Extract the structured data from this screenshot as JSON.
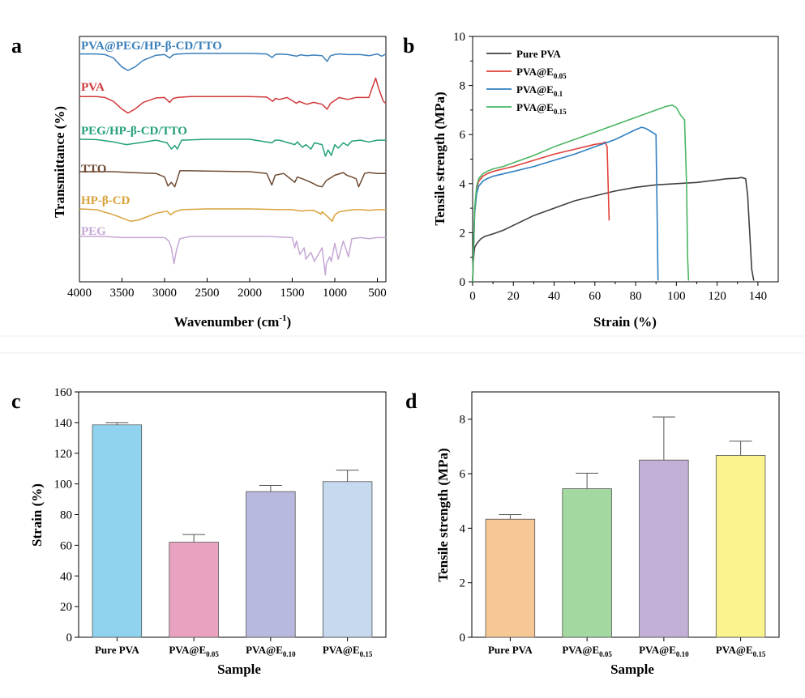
{
  "colors": {
    "black": "#000000",
    "divider": "#ececec"
  },
  "chart_data": [
    {
      "panel": "a",
      "type": "line",
      "xlabel_main": "Wavenumber (cm",
      "xlabel_sup": "-1",
      "xlabel_close": ")",
      "ylabel": "Transmittance (%)",
      "xlim": [
        4000,
        400
      ],
      "x_reversed": true,
      "x_ticks": [
        4000,
        3500,
        3000,
        2500,
        2000,
        1500,
        1000,
        500
      ],
      "y_ticks_shown": false,
      "series": [
        {
          "name": "PVA@PEG/HP-β-CD/TTO",
          "color": "#3a7fba",
          "x": [
            4000,
            3800,
            3700,
            3600,
            3500,
            3430,
            3350,
            3250,
            3100,
            3000,
            2940,
            2900,
            2850,
            2700,
            2500,
            2000,
            1800,
            1735,
            1700,
            1650,
            1550,
            1450,
            1400,
            1330,
            1250,
            1150,
            1090,
            1050,
            1000,
            950,
            850,
            700,
            600,
            500,
            450,
            400
          ],
          "y": [
            0.02,
            0.02,
            0.05,
            0.2,
            0.6,
            0.75,
            0.6,
            0.3,
            0.08,
            0.05,
            0.2,
            0.06,
            0.03,
            0.0,
            0.0,
            0.0,
            0.02,
            0.18,
            0.05,
            0.03,
            0.05,
            0.12,
            0.06,
            0.1,
            0.07,
            0.1,
            0.35,
            0.1,
            0.05,
            0.02,
            0.05,
            0.05,
            0.1,
            0.02,
            0.12,
            0.02
          ]
        },
        {
          "name": "PVA",
          "color": "#d0383a",
          "x": [
            4000,
            3800,
            3700,
            3600,
            3500,
            3430,
            3350,
            3250,
            3100,
            3000,
            2940,
            2900,
            2850,
            2700,
            2500,
            2000,
            1800,
            1730,
            1700,
            1650,
            1560,
            1450,
            1420,
            1330,
            1250,
            1150,
            1090,
            1050,
            1000,
            950,
            850,
            750,
            600,
            520,
            480,
            430,
            400
          ],
          "y": [
            0.05,
            0.05,
            0.1,
            0.3,
            0.7,
            0.9,
            0.7,
            0.35,
            0.12,
            0.1,
            0.35,
            0.15,
            0.1,
            0.05,
            0.05,
            0.05,
            0.08,
            0.3,
            0.15,
            0.2,
            0.1,
            0.4,
            0.3,
            0.45,
            0.35,
            0.45,
            0.7,
            0.4,
            0.25,
            0.1,
            0.2,
            0.1,
            0.1,
            -0.9,
            -0.3,
            0.3,
            0.4
          ]
        },
        {
          "name": "PEG/HP-β-CD/TTO",
          "color": "#23a07c",
          "x": [
            4000,
            3800,
            3600,
            3450,
            3300,
            3100,
            2970,
            2920,
            2880,
            2850,
            2800,
            2500,
            2000,
            1740,
            1700,
            1650,
            1470,
            1440,
            1380,
            1340,
            1280,
            1240,
            1150,
            1110,
            1080,
            1040,
            1000,
            960,
            900,
            850,
            800,
            700,
            600,
            500,
            400
          ],
          "y": [
            0.0,
            0.02,
            0.15,
            0.3,
            0.2,
            0.05,
            0.2,
            0.55,
            0.35,
            0.55,
            0.05,
            0.0,
            0.0,
            0.2,
            0.05,
            0.05,
            0.3,
            0.15,
            0.45,
            0.3,
            0.55,
            0.2,
            0.3,
            0.95,
            0.6,
            0.9,
            0.3,
            0.5,
            0.2,
            0.35,
            0.1,
            0.05,
            0.15,
            0.05,
            0.05
          ]
        },
        {
          "name": "TTO",
          "color": "#6e4a32",
          "x": [
            4000,
            3600,
            3400,
            3100,
            3000,
            2960,
            2920,
            2880,
            2850,
            2820,
            2700,
            2500,
            2000,
            1800,
            1740,
            1700,
            1600,
            1470,
            1440,
            1380,
            1280,
            1200,
            1150,
            1100,
            1000,
            900,
            860,
            800,
            750,
            720,
            650,
            600,
            500,
            400
          ],
          "y": [
            0.0,
            0.0,
            0.05,
            0.1,
            0.3,
            0.8,
            0.6,
            0.85,
            0.4,
            -0.05,
            -0.05,
            -0.03,
            0.0,
            0.1,
            0.75,
            0.2,
            0.1,
            0.6,
            0.3,
            0.4,
            0.6,
            0.8,
            0.85,
            0.5,
            0.2,
            0.05,
            0.2,
            0.3,
            0.4,
            0.85,
            0.1,
            0.05,
            0.1,
            0.1
          ]
        },
        {
          "name": "HP-β-CD",
          "color": "#d9a23a",
          "x": [
            4000,
            3800,
            3600,
            3400,
            3300,
            3100,
            2970,
            2930,
            2880,
            2800,
            2500,
            2000,
            1650,
            1500,
            1450,
            1370,
            1340,
            1250,
            1160,
            1150,
            1080,
            1030,
            1000,
            950,
            850,
            760,
            700,
            600,
            500,
            400
          ],
          "y": [
            0.0,
            0.05,
            0.4,
            0.85,
            0.75,
            0.3,
            0.15,
            0.4,
            0.2,
            0.05,
            0.0,
            0.0,
            0.05,
            0.05,
            0.1,
            0.15,
            0.1,
            0.1,
            0.35,
            0.2,
            0.55,
            0.85,
            0.4,
            0.2,
            0.1,
            0.05,
            0.05,
            0.1,
            0.05,
            0.05
          ]
        },
        {
          "name": "PEG",
          "color": "#c6a8d4",
          "x": [
            4000,
            3700,
            3500,
            3300,
            3000,
            2950,
            2920,
            2890,
            2860,
            2820,
            2700,
            2000,
            1800,
            1500,
            1470,
            1450,
            1410,
            1360,
            1340,
            1280,
            1240,
            1150,
            1110,
            1100,
            1060,
            1040,
            1000,
            960,
            900,
            840,
            800,
            700,
            600,
            500,
            400
          ],
          "y": [
            0.0,
            0.0,
            0.05,
            0.05,
            0.05,
            0.2,
            0.5,
            1.2,
            0.6,
            0.1,
            0.0,
            0.0,
            0.0,
            0.05,
            0.5,
            0.2,
            0.8,
            0.5,
            1.0,
            0.7,
            1.1,
            0.5,
            1.7,
            1.2,
            0.9,
            1.1,
            0.3,
            1.0,
            0.2,
            0.9,
            0.1,
            0.05,
            0.1,
            0.05,
            0.05
          ]
        }
      ]
    },
    {
      "panel": "b",
      "type": "line",
      "xlabel": "Strain (%)",
      "ylabel": "Tensile strength (MPa)",
      "xlim": [
        0,
        150
      ],
      "ylim": [
        0,
        10
      ],
      "x_ticks": [
        0,
        20,
        40,
        60,
        80,
        100,
        120,
        140
      ],
      "y_ticks": [
        0,
        2,
        4,
        6,
        8,
        10
      ],
      "legend": "top-left",
      "legend_entries": [
        {
          "main": "Pure PVA",
          "sub": ""
        },
        {
          "main": "PVA@E",
          "sub": "0.05"
        },
        {
          "main": "PVA@E",
          "sub": "0.1"
        },
        {
          "main": "PVA@E",
          "sub": "0.15"
        }
      ],
      "series": [
        {
          "name": "Pure PVA",
          "color": "#404040",
          "x": [
            0,
            0.3,
            0.7,
            1,
            2,
            3,
            4,
            6,
            8,
            10,
            15,
            20,
            30,
            40,
            50,
            60,
            70,
            80,
            90,
            100,
            110,
            120,
            125,
            130,
            132,
            134,
            135,
            136,
            137,
            138
          ],
          "y": [
            0,
            0.8,
            1.2,
            1.4,
            1.55,
            1.65,
            1.75,
            1.85,
            1.9,
            1.95,
            2.1,
            2.3,
            2.7,
            3.0,
            3.3,
            3.5,
            3.7,
            3.85,
            3.95,
            4.0,
            4.05,
            4.15,
            4.2,
            4.22,
            4.25,
            4.2,
            3.5,
            2.0,
            0.5,
            0.05
          ]
        },
        {
          "name": "PVA@E0.05",
          "color": "#e0403b",
          "x": [
            0,
            0.5,
            1,
            2,
            3,
            5,
            7,
            10,
            15,
            20,
            30,
            40,
            50,
            55,
            60,
            64,
            65,
            66,
            67
          ],
          "y": [
            0,
            1.5,
            2.8,
            3.8,
            4.1,
            4.3,
            4.4,
            4.5,
            4.6,
            4.7,
            4.95,
            5.2,
            5.4,
            5.5,
            5.6,
            5.65,
            5.7,
            5.5,
            2.5
          ]
        },
        {
          "name": "PVA@E0.1",
          "color": "#2f7fc1",
          "x": [
            0,
            0.5,
            1,
            2,
            3,
            5,
            7,
            10,
            15,
            20,
            30,
            40,
            50,
            60,
            70,
            75,
            80,
            83,
            85,
            88,
            90,
            90.5,
            91
          ],
          "y": [
            0,
            1.5,
            2.8,
            3.6,
            3.9,
            4.1,
            4.2,
            4.3,
            4.4,
            4.5,
            4.7,
            4.95,
            5.2,
            5.5,
            5.8,
            6.0,
            6.2,
            6.3,
            6.25,
            6.1,
            6.0,
            3.0,
            0.05
          ]
        },
        {
          "name": "PVA@E0.15",
          "color": "#4ab563",
          "x": [
            0,
            0.5,
            1,
            2,
            3,
            5,
            7,
            10,
            15,
            20,
            30,
            40,
            50,
            60,
            70,
            80,
            90,
            95,
            98,
            100,
            102,
            104,
            105,
            105.5,
            106
          ],
          "y": [
            0,
            1.6,
            3.0,
            3.9,
            4.2,
            4.4,
            4.5,
            4.6,
            4.7,
            4.85,
            5.15,
            5.5,
            5.8,
            6.1,
            6.4,
            6.7,
            7.0,
            7.15,
            7.2,
            7.1,
            6.8,
            6.6,
            4.0,
            1.0,
            0.05
          ]
        }
      ]
    },
    {
      "panel": "c",
      "type": "bar",
      "xlabel": "Sample",
      "ylabel": "Strain (%)",
      "ylim": [
        0,
        160
      ],
      "y_ticks": [
        0,
        20,
        40,
        60,
        80,
        100,
        120,
        140,
        160
      ],
      "categories": [
        {
          "main": "Pure PVA",
          "sub": ""
        },
        {
          "main": "PVA@E",
          "sub": "0.05"
        },
        {
          "main": "PVA@E",
          "sub": "0.10"
        },
        {
          "main": "PVA@E",
          "sub": "0.15"
        }
      ],
      "values": [
        138.5,
        62,
        95,
        101.5
      ],
      "errors": [
        1.5,
        5,
        4,
        7.5
      ],
      "colors": [
        "#8fd3ee",
        "#e9a3c1",
        "#b8b9de",
        "#c6d9ee"
      ]
    },
    {
      "panel": "d",
      "type": "bar",
      "xlabel": "Sample",
      "ylabel": "Tensile strength (MPa)",
      "ylim": [
        0,
        9
      ],
      "y_ticks": [
        0,
        2,
        4,
        6,
        8
      ],
      "categories": [
        {
          "main": "Pure PVA",
          "sub": ""
        },
        {
          "main": "PVA@E",
          "sub": "0.05"
        },
        {
          "main": "PVA@E",
          "sub": "0.10"
        },
        {
          "main": "PVA@E",
          "sub": "0.15"
        }
      ],
      "values": [
        4.33,
        5.45,
        6.5,
        6.67
      ],
      "errors": [
        0.17,
        0.57,
        1.58,
        0.52
      ],
      "colors": [
        "#f7c796",
        "#a3d9a0",
        "#c2b0d6",
        "#fbf38d"
      ]
    }
  ]
}
